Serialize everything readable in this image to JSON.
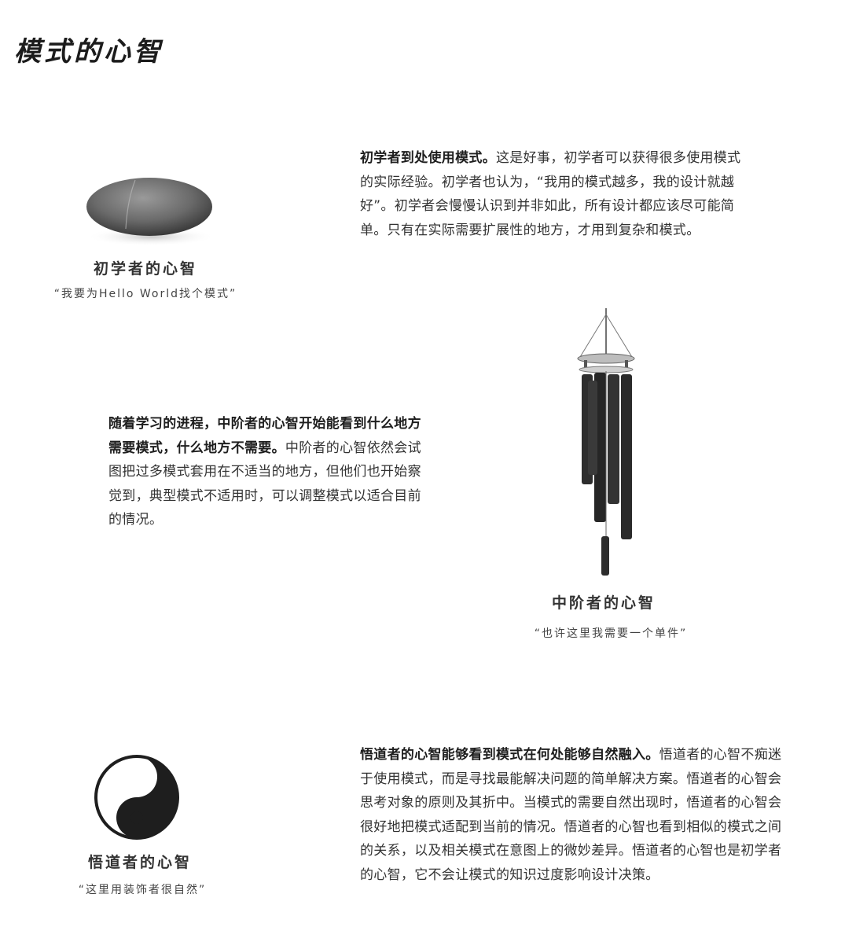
{
  "page": {
    "title": "模式的心智"
  },
  "beginner": {
    "caption_title": "初学者的心智",
    "caption_quote": "“我要为Hello World找个模式”",
    "lead": "初学者到处使用模式。",
    "body": "这是好事，初学者可以获得很多使用模式的实际经验。初学者也认为，“我用的模式越多，我的设计就越好”。初学者会慢慢认识到并非如此，所有设计都应该尽可能简单。只有在实际需要扩展性的地方，才用到复杂和模式。"
  },
  "intermediate": {
    "caption_title": "中阶者的心智",
    "caption_quote": "“也许这里我需要一个单件”",
    "lead": "随着学习的进程，中阶者的心智开始能看到什么地方需要模式，什么地方不需要。",
    "body": "中阶者的心智依然会试图把过多模式套用在不适当的地方，但他们也开始察觉到，典型模式不适用时，可以调整模式以适合目前的情况。"
  },
  "zen": {
    "caption_title": "悟道者的心智",
    "caption_quote": "“这里用装饰者很自然”",
    "lead": "悟道者的心智能够看到模式在何处能够自然融入。",
    "body": "悟道者的心智不痴迷于使用模式，而是寻找最能解决问题的简单解决方案。悟道者的心智会思考对象的原则及其折中。当模式的需要自然出现时，悟道者的心智会很好地把模式适配到当前的情况。悟道者的心智也看到相似的模式之间的关系，以及相关模式在意图上的微妙差异。悟道者的心智也是初学者的心智，它不会让模式的知识过度影响设计决策。"
  }
}
